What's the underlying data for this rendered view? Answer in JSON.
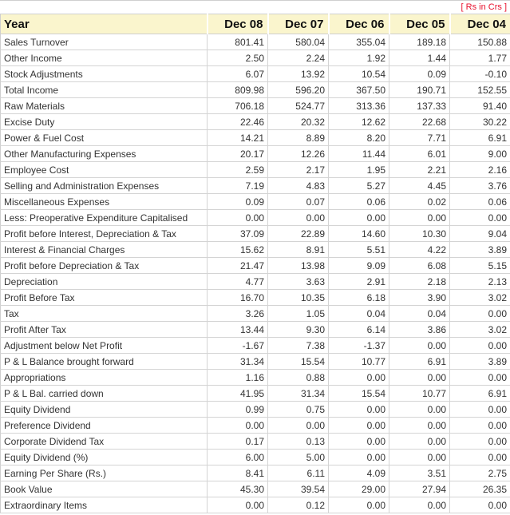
{
  "note": "[ Rs in Crs ]",
  "colors": {
    "header_bg": "#faf5cd",
    "note_red": "#e8112d",
    "border": "#cfcfcf",
    "cell_border": "#d4d4d4",
    "text": "#333333",
    "header_text": "#111111"
  },
  "table": {
    "header": [
      "Year",
      "Dec 08",
      "Dec 07",
      "Dec 06",
      "Dec 05",
      "Dec 04"
    ],
    "rows": [
      {
        "label": "Sales Turnover",
        "values": [
          "801.41",
          "580.04",
          "355.04",
          "189.18",
          "150.88"
        ]
      },
      {
        "label": "Other Income",
        "values": [
          "2.50",
          "2.24",
          "1.92",
          "1.44",
          "1.77"
        ]
      },
      {
        "label": "Stock Adjustments",
        "values": [
          "6.07",
          "13.92",
          "10.54",
          "0.09",
          "-0.10"
        ]
      },
      {
        "label": "Total Income",
        "values": [
          "809.98",
          "596.20",
          "367.50",
          "190.71",
          "152.55"
        ]
      },
      {
        "label": "Raw Materials",
        "values": [
          "706.18",
          "524.77",
          "313.36",
          "137.33",
          "91.40"
        ]
      },
      {
        "label": "Excise Duty",
        "values": [
          "22.46",
          "20.32",
          "12.62",
          "22.68",
          "30.22"
        ]
      },
      {
        "label": "Power & Fuel Cost",
        "values": [
          "14.21",
          "8.89",
          "8.20",
          "7.71",
          "6.91"
        ]
      },
      {
        "label": "Other Manufacturing Expenses",
        "values": [
          "20.17",
          "12.26",
          "11.44",
          "6.01",
          "9.00"
        ]
      },
      {
        "label": "Employee Cost",
        "values": [
          "2.59",
          "2.17",
          "1.95",
          "2.21",
          "2.16"
        ]
      },
      {
        "label": "Selling and Administration Expenses",
        "values": [
          "7.19",
          "4.83",
          "5.27",
          "4.45",
          "3.76"
        ]
      },
      {
        "label": "Miscellaneous Expenses",
        "values": [
          "0.09",
          "0.07",
          "0.06",
          "0.02",
          "0.06"
        ]
      },
      {
        "label": "Less: Preoperative Expenditure Capitalised",
        "values": [
          "0.00",
          "0.00",
          "0.00",
          "0.00",
          "0.00"
        ]
      },
      {
        "label": "Profit before Interest, Depreciation & Tax",
        "values": [
          "37.09",
          "22.89",
          "14.60",
          "10.30",
          "9.04"
        ]
      },
      {
        "label": "Interest & Financial Charges",
        "values": [
          "15.62",
          "8.91",
          "5.51",
          "4.22",
          "3.89"
        ]
      },
      {
        "label": "Profit before Depreciation & Tax",
        "values": [
          "21.47",
          "13.98",
          "9.09",
          "6.08",
          "5.15"
        ]
      },
      {
        "label": "Depreciation",
        "values": [
          "4.77",
          "3.63",
          "2.91",
          "2.18",
          "2.13"
        ]
      },
      {
        "label": "Profit Before Tax",
        "values": [
          "16.70",
          "10.35",
          "6.18",
          "3.90",
          "3.02"
        ]
      },
      {
        "label": "Tax",
        "values": [
          "3.26",
          "1.05",
          "0.04",
          "0.04",
          "0.00"
        ]
      },
      {
        "label": "Profit After Tax",
        "values": [
          "13.44",
          "9.30",
          "6.14",
          "3.86",
          "3.02"
        ]
      },
      {
        "label": "Adjustment below Net Profit",
        "values": [
          "-1.67",
          "7.38",
          "-1.37",
          "0.00",
          "0.00"
        ]
      },
      {
        "label": "P & L Balance brought forward",
        "values": [
          "31.34",
          "15.54",
          "10.77",
          "6.91",
          "3.89"
        ]
      },
      {
        "label": "Appropriations",
        "values": [
          "1.16",
          "0.88",
          "0.00",
          "0.00",
          "0.00"
        ]
      },
      {
        "label": "P & L Bal. carried down",
        "values": [
          "41.95",
          "31.34",
          "15.54",
          "10.77",
          "6.91"
        ]
      },
      {
        "label": "Equity Dividend",
        "values": [
          "0.99",
          "0.75",
          "0.00",
          "0.00",
          "0.00"
        ]
      },
      {
        "label": "Preference Dividend",
        "values": [
          "0.00",
          "0.00",
          "0.00",
          "0.00",
          "0.00"
        ]
      },
      {
        "label": "Corporate Dividend Tax",
        "values": [
          "0.17",
          "0.13",
          "0.00",
          "0.00",
          "0.00"
        ]
      },
      {
        "label": "Equity Dividend (%)",
        "values": [
          "6.00",
          "5.00",
          "0.00",
          "0.00",
          "0.00"
        ]
      },
      {
        "label": "Earning Per Share (Rs.)",
        "values": [
          "8.41",
          "6.11",
          "4.09",
          "3.51",
          "2.75"
        ]
      },
      {
        "label": "Book Value",
        "values": [
          "45.30",
          "39.54",
          "29.00",
          "27.94",
          "26.35"
        ]
      },
      {
        "label": "Extraordinary Items",
        "values": [
          "0.00",
          "0.12",
          "0.00",
          "0.00",
          "0.00"
        ]
      }
    ]
  }
}
